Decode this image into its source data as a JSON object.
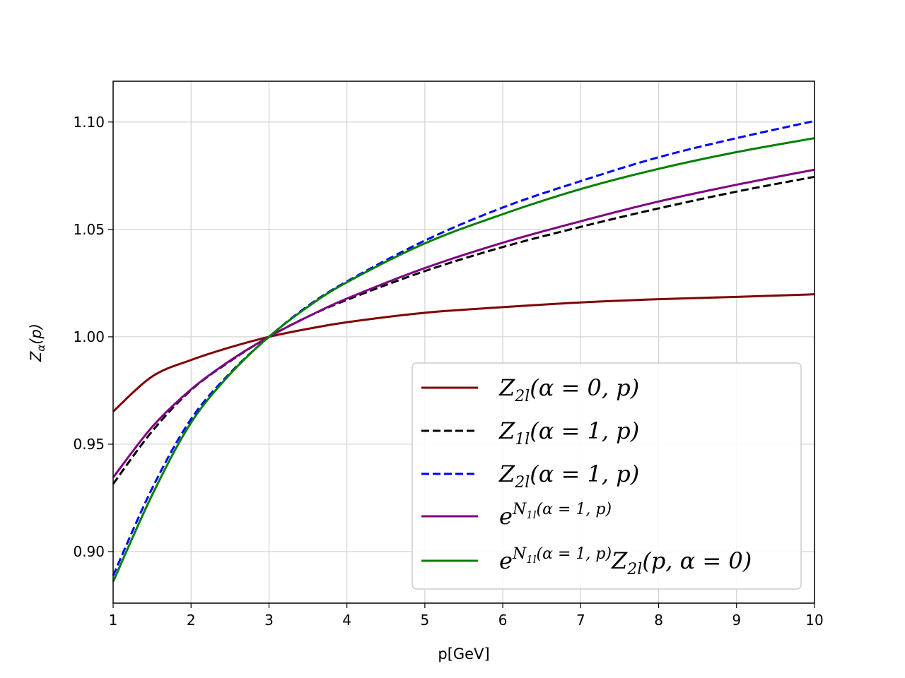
{
  "chart_data": {
    "type": "line",
    "xlabel": "p[GeV]",
    "ylabel": "Z_α(p)",
    "xlim": [
      1,
      10
    ],
    "ylim": [
      0.876,
      1.119
    ],
    "xticks": [
      "1",
      "2",
      "3",
      "4",
      "5",
      "6",
      "7",
      "8",
      "9",
      "10"
    ],
    "yticks": [
      "0.90",
      "0.95",
      "1.00",
      "1.05",
      "1.10"
    ],
    "grid": true,
    "legend_position": "lower-right",
    "x": [
      1,
      1.5,
      2,
      2.5,
      3,
      3.5,
      4,
      5,
      6,
      7,
      8,
      9,
      10
    ],
    "series": [
      {
        "name": "Z_2l(α = 0, p)",
        "color": "#800000",
        "dash": "solid",
        "values": [
          0.9652,
          0.9815,
          0.9892,
          0.9951,
          1.0,
          1.0037,
          1.0068,
          1.0112,
          1.0138,
          1.016,
          1.0175,
          1.0186,
          1.0198
        ]
      },
      {
        "name": "Z_1l(α = 1, p)",
        "color": "#000000",
        "dash": "dashed",
        "values": [
          0.9315,
          0.956,
          0.9752,
          0.9886,
          1.0,
          1.0094,
          1.0172,
          1.0306,
          1.0418,
          1.0512,
          1.0598,
          1.0676,
          1.0745
        ]
      },
      {
        "name": "Z_2l(α = 1, p)",
        "color": "#0000ff",
        "dash": "dashed",
        "values": [
          0.8888,
          0.9294,
          0.9617,
          0.9831,
          1.0,
          1.0144,
          1.0258,
          1.0448,
          1.0602,
          1.0725,
          1.0836,
          1.0925,
          1.1005
        ]
      },
      {
        "name": "e^{N_1l(α = 1, p)}",
        "color": "#800080",
        "dash": "solid",
        "values": [
          0.9345,
          0.958,
          0.9755,
          0.9889,
          1.0,
          1.0094,
          1.0178,
          1.032,
          1.0438,
          1.0538,
          1.063,
          1.0708,
          1.0778
        ]
      },
      {
        "name": "e^{N_1l(α = 1, p)} Z_2l(p, α = 0)",
        "color": "#008000",
        "dash": "solid",
        "values": [
          0.886,
          0.9263,
          0.96,
          0.9826,
          1.0,
          1.014,
          1.0254,
          1.0435,
          1.0571,
          1.0688,
          1.0782,
          1.086,
          1.0925
        ]
      }
    ],
    "legend_entries": [
      {
        "base": "Z",
        "sub": "2l",
        "rest": "(α = 0, p)",
        "sup": "",
        "tail_base": "",
        "tail_sub": "",
        "tail_rest": ""
      },
      {
        "base": "Z",
        "sub": "1l",
        "rest": "(α = 1, p)",
        "sup": "",
        "tail_base": "",
        "tail_sub": "",
        "tail_rest": ""
      },
      {
        "base": "Z",
        "sub": "2l",
        "rest": "(α = 1, p)",
        "sup": "",
        "tail_base": "",
        "tail_sub": "",
        "tail_rest": ""
      },
      {
        "base": "e",
        "sub": "",
        "rest": "",
        "sup": "N1l(α = 1, p)",
        "tail_base": "",
        "tail_sub": "",
        "tail_rest": ""
      },
      {
        "base": "e",
        "sub": "",
        "rest": "",
        "sup": "N1l(α = 1, p)",
        "tail_base": "Z",
        "tail_sub": "2l",
        "tail_rest": "(p, α = 0)"
      }
    ]
  }
}
